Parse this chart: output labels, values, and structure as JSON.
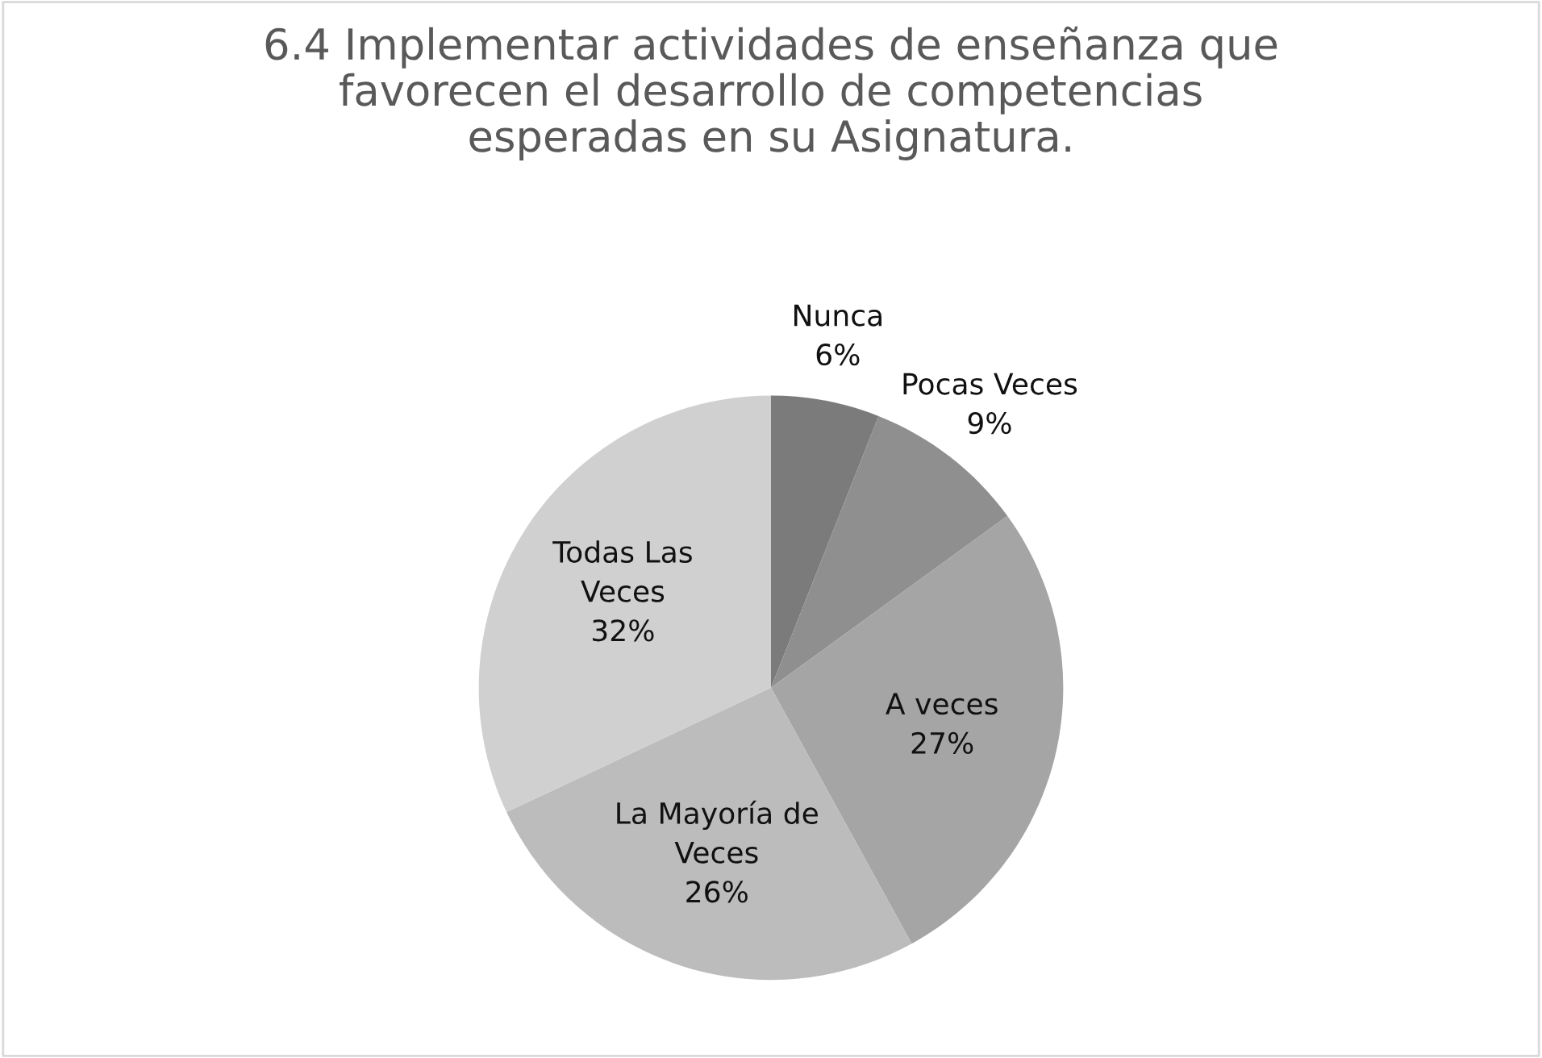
{
  "chart_data": {
    "type": "pie",
    "title": "6.4 Implementar actividades de enseñanza que\nfavorecen el desarrollo de competencias\nesperadas en su Asignatura.",
    "categories": [
      "Nunca",
      "Pocas Veces",
      "A veces",
      "La Mayoría de\nVeces",
      "Todas Las\nVeces"
    ],
    "values": [
      6,
      9,
      27,
      26,
      32
    ],
    "colors": [
      "#7b7b7b",
      "#8f8f8f",
      "#a5a5a5",
      "#bcbcbc",
      "#d0d0d0"
    ],
    "value_labels": [
      "6%",
      "9%",
      "27%",
      "26%",
      "32%"
    ]
  }
}
